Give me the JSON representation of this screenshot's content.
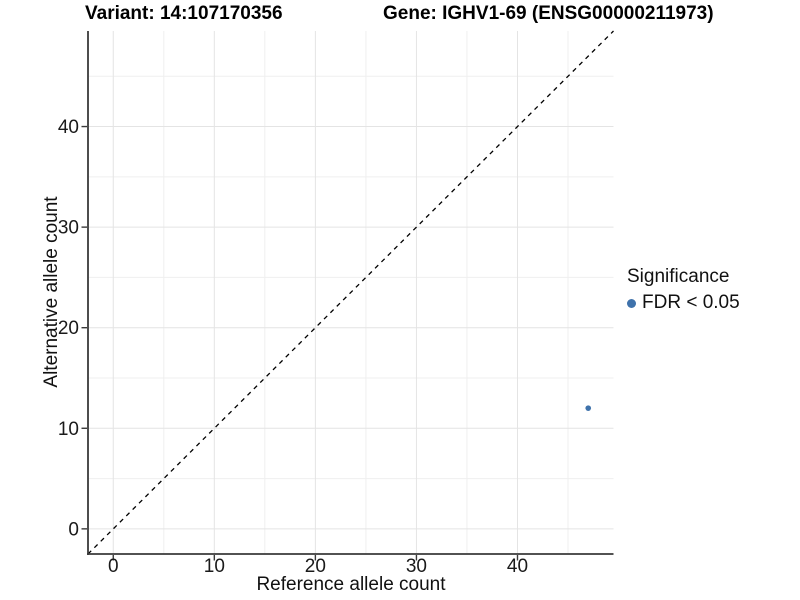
{
  "chart_data": {
    "type": "scatter",
    "title": {
      "left": "Variant: 14:107170356",
      "right": "Gene: IGHV1-69 (ENSG00000211973)"
    },
    "xlabel": "Reference allele count",
    "ylabel": "Alternative allele count",
    "xlim": [
      -2.5,
      49.5
    ],
    "ylim": [
      -2.5,
      49.5
    ],
    "x_major_ticks": [
      0,
      10,
      20,
      30,
      40
    ],
    "y_major_ticks": [
      0,
      10,
      20,
      30,
      40
    ],
    "x_minor_ticks": [
      5,
      15,
      25,
      35,
      45
    ],
    "y_minor_ticks": [
      5,
      15,
      25,
      35,
      45
    ],
    "grid": true,
    "points": [
      {
        "x": 47,
        "y": 12,
        "series": "FDR < 0.05"
      }
    ],
    "reference_line": {
      "type": "identity",
      "style": "dashed",
      "from": [
        -2.5,
        -2.5
      ],
      "to": [
        49.5,
        49.5
      ]
    },
    "legend": {
      "title": "Significance",
      "position": "right",
      "items": [
        {
          "label": "FDR < 0.05",
          "color": "#3f72ab"
        }
      ]
    },
    "colors": {
      "point": "#3f72ab",
      "grid_major": "#e4e4e4",
      "grid_minor": "#efefef",
      "axis_line": "#3a3a3a",
      "tick_text": "#1a1a1a",
      "reference_line": "#000000"
    }
  }
}
